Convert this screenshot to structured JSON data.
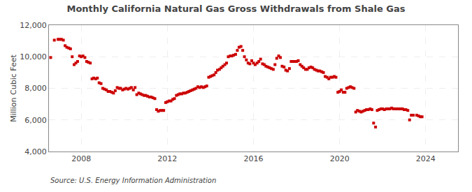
{
  "chart_data": {
    "type": "scatter",
    "title": "Monthly California Natural Gas Gross Withdrawals from Shale Gas",
    "ylabel": "Million Cubic Feet",
    "source": "Source: U.S. Energy Information Administration",
    "color": "#cc0000",
    "marker": "square",
    "grid": true,
    "xlim": [
      2006.5,
      2025.5
    ],
    "xticks": [
      2008,
      2012,
      2016,
      2020,
      2024
    ],
    "ylim": [
      4000,
      12000
    ],
    "yticks": [
      {
        "value": 4000,
        "label": "4,000"
      },
      {
        "value": 6000,
        "label": "6,000"
      },
      {
        "value": 8000,
        "label": "8,000"
      },
      {
        "value": 10000,
        "label": "10,000"
      },
      {
        "value": 12000,
        "label": "12,000"
      }
    ],
    "x": [
      2006.58,
      2006.75,
      2006.92,
      2007.0,
      2007.08,
      2007.17,
      2007.25,
      2007.33,
      2007.42,
      2007.5,
      2007.58,
      2007.67,
      2007.75,
      2007.83,
      2007.92,
      2008.0,
      2008.08,
      2008.17,
      2008.25,
      2008.33,
      2008.42,
      2008.5,
      2008.58,
      2008.67,
      2008.75,
      2008.83,
      2008.92,
      2009.0,
      2009.08,
      2009.17,
      2009.25,
      2009.33,
      2009.42,
      2009.5,
      2009.58,
      2009.67,
      2009.75,
      2009.83,
      2009.92,
      2010.0,
      2010.08,
      2010.17,
      2010.25,
      2010.33,
      2010.42,
      2010.5,
      2010.58,
      2010.67,
      2010.75,
      2010.83,
      2010.92,
      2011.0,
      2011.08,
      2011.17,
      2011.25,
      2011.33,
      2011.42,
      2011.5,
      2011.58,
      2011.67,
      2011.75,
      2011.83,
      2011.92,
      2012.0,
      2012.08,
      2012.17,
      2012.25,
      2012.33,
      2012.42,
      2012.5,
      2012.58,
      2012.67,
      2012.75,
      2012.83,
      2012.92,
      2013.0,
      2013.08,
      2013.17,
      2013.25,
      2013.33,
      2013.42,
      2013.5,
      2013.58,
      2013.67,
      2013.75,
      2013.83,
      2013.92,
      2014.0,
      2014.08,
      2014.17,
      2014.25,
      2014.33,
      2014.42,
      2014.5,
      2014.58,
      2014.67,
      2014.75,
      2014.83,
      2014.92,
      2015.0,
      2015.08,
      2015.17,
      2015.25,
      2015.33,
      2015.42,
      2015.5,
      2015.58,
      2015.67,
      2015.75,
      2015.83,
      2015.92,
      2016.0,
      2016.08,
      2016.17,
      2016.25,
      2016.33,
      2016.42,
      2016.5,
      2016.58,
      2016.67,
      2016.75,
      2016.83,
      2016.92,
      2017.0,
      2017.08,
      2017.17,
      2017.25,
      2017.33,
      2017.42,
      2017.5,
      2017.58,
      2017.67,
      2017.75,
      2017.83,
      2017.92,
      2018.0,
      2018.08,
      2018.17,
      2018.25,
      2018.33,
      2018.42,
      2018.5,
      2018.58,
      2018.67,
      2018.75,
      2018.83,
      2018.92,
      2019.0,
      2019.08,
      2019.17,
      2019.25,
      2019.33,
      2019.42,
      2019.5,
      2019.58,
      2019.67,
      2019.75,
      2019.83,
      2019.92,
      2020.0,
      2020.08,
      2020.17,
      2020.25,
      2020.33,
      2020.42,
      2020.5,
      2020.58,
      2020.67,
      2020.75,
      2020.83,
      2020.92,
      2021.0,
      2021.08,
      2021.17,
      2021.25,
      2021.33,
      2021.42,
      2021.5,
      2021.58,
      2021.67,
      2021.75,
      2021.83,
      2021.92,
      2022.0,
      2022.08,
      2022.17,
      2022.25,
      2022.33,
      2022.42,
      2022.5,
      2022.58,
      2022.67,
      2022.75,
      2022.83,
      2022.92,
      2023.0,
      2023.08,
      2023.17,
      2023.25,
      2023.33,
      2023.42,
      2023.58,
      2023.67,
      2023.75,
      2023.83
    ],
    "values": [
      9950,
      11050,
      11100,
      11100,
      11100,
      11050,
      10700,
      10600,
      10550,
      10500,
      10000,
      9500,
      9600,
      9700,
      10050,
      10000,
      10050,
      9950,
      9700,
      9650,
      9600,
      8600,
      8650,
      8600,
      8650,
      8350,
      8300,
      8000,
      7950,
      7900,
      7800,
      7800,
      7750,
      7700,
      7850,
      8050,
      8000,
      8000,
      7900,
      7950,
      8000,
      7950,
      8000,
      8050,
      7900,
      8050,
      7600,
      7700,
      7650,
      7600,
      7550,
      7550,
      7500,
      7450,
      7450,
      7400,
      7350,
      6650,
      6550,
      6600,
      6600,
      6600,
      7100,
      7150,
      7200,
      7200,
      7300,
      7350,
      7550,
      7600,
      7650,
      7650,
      7700,
      7700,
      7750,
      7800,
      7850,
      7900,
      7950,
      8000,
      8100,
      8050,
      8100,
      8050,
      8100,
      8150,
      8700,
      8750,
      8800,
      8850,
      9000,
      9150,
      9200,
      9300,
      9400,
      9500,
      9600,
      10000,
      10050,
      10050,
      10100,
      10150,
      10400,
      10600,
      10650,
      10400,
      10000,
      9800,
      9600,
      9550,
      9750,
      9600,
      9500,
      9600,
      9700,
      9850,
      9550,
      9500,
      9400,
      9350,
      9300,
      9250,
      9200,
      9500,
      9900,
      10050,
      9950,
      9400,
      9350,
      9150,
      9100,
      9250,
      9700,
      9700,
      9700,
      9700,
      9750,
      9500,
      9400,
      9300,
      9200,
      9200,
      9300,
      9350,
      9300,
      9200,
      9150,
      9100,
      9100,
      9050,
      9000,
      8750,
      8700,
      8600,
      8700,
      8700,
      8750,
      8700,
      7750,
      7800,
      7900,
      7750,
      7750,
      8000,
      8050,
      8100,
      8050,
      8000,
      6500,
      6600,
      6550,
      6500,
      6550,
      6600,
      6650,
      6650,
      6700,
      6650,
      5800,
      5550,
      6600,
      6650,
      6700,
      6700,
      6650,
      6700,
      6700,
      6700,
      6750,
      6700,
      6700,
      6700,
      6700,
      6700,
      6700,
      6650,
      6650,
      6600,
      6000,
      6300,
      6300,
      6300,
      6250,
      6200,
      6200
    ]
  }
}
